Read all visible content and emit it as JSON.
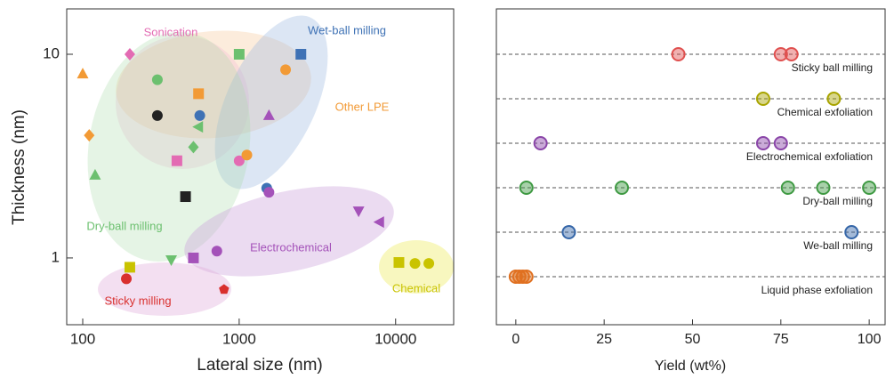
{
  "chart_data": [
    {
      "type": "scatter",
      "x_label": "Lateral size (nm)",
      "y_label": "Thickness (nm)",
      "xscale": "log",
      "yscale": "log",
      "xlim": [
        79,
        23500
      ],
      "ylim": [
        0.47,
        16.7
      ],
      "xticks": [
        100,
        1000,
        10000
      ],
      "yticks": [
        1,
        10
      ],
      "series": [
        {
          "name": "Sonication",
          "color": "#e36bb3",
          "x": [
            200,
            400,
            1000
          ],
          "y": [
            10,
            3,
            3
          ],
          "markers": [
            "diamond",
            "square",
            "circle"
          ]
        },
        {
          "name": "Wet-ball milling",
          "color": "#3f72b5",
          "x": [
            2480,
            560,
            1500
          ],
          "y": [
            10,
            5,
            2.2
          ],
          "markers": [
            "square",
            "circle",
            "circle"
          ]
        },
        {
          "name": "Other LPE",
          "color": "#f29a35",
          "x": [
            100,
            110,
            1980,
            1120,
            550
          ],
          "y": [
            8,
            4,
            8.4,
            3.2,
            6.4
          ],
          "markers": [
            "triangle",
            "diamond",
            "circle",
            "circle",
            "square"
          ]
        },
        {
          "name": "Dry-ball milling",
          "color": "#6cc06f",
          "x": [
            300,
            1000,
            550,
            510,
            120,
            368
          ],
          "y": [
            7.5,
            10,
            4.4,
            3.5,
            2.55,
            0.98
          ],
          "markers": [
            "circle",
            "square",
            "triangle-left",
            "diamond",
            "triangle",
            "triangle-down"
          ]
        },
        {
          "color": "#222222",
          "x": [
            300,
            454
          ],
          "y": [
            5,
            2
          ],
          "markers": [
            "circle",
            "square"
          ]
        },
        {
          "name": "Electrochemical",
          "color": "#a452b9",
          "x": [
            1550,
            1550,
            5800,
            7900,
            720,
            510
          ],
          "y": [
            5,
            2.1,
            1.7,
            1.5,
            1.08,
            1
          ],
          "markers": [
            "triangle",
            "circle",
            "triangle-down",
            "triangle-left",
            "circle",
            "square"
          ]
        },
        {
          "name": "Chemical",
          "color": "#c9c300",
          "x": [
            10500,
            13300,
            16300,
            200
          ],
          "y": [
            0.95,
            0.94,
            0.94,
            0.9
          ],
          "markers": [
            "square",
            "circle",
            "circle",
            "square"
          ]
        },
        {
          "name": "Sticky milling",
          "color": "#d9302e",
          "x": [
            190,
            800
          ],
          "y": [
            0.79,
            0.7
          ],
          "markers": [
            "circle",
            "pentagon"
          ]
        }
      ]
    },
    {
      "type": "dot",
      "x_label": "Yield (wt%)",
      "xlim": [
        -5.5,
        104.5
      ],
      "xticks": [
        0,
        25,
        50,
        75,
        100
      ],
      "series": [
        {
          "name": "Sticky ball milling",
          "color": "#e0504f",
          "values": [
            46,
            75,
            78
          ]
        },
        {
          "name": "Chemical exfoliation",
          "color": "#a8a400",
          "values": [
            70,
            90
          ]
        },
        {
          "name": "Electrochemical exfoliation",
          "color": "#8a45a8",
          "values": [
            7,
            70,
            75
          ]
        },
        {
          "name": "Dry-ball milling",
          "color": "#3f9a43",
          "values": [
            3,
            30,
            77,
            87,
            100
          ]
        },
        {
          "name": "We-ball milling",
          "color": "#3566a8",
          "values": [
            15,
            95
          ]
        },
        {
          "name": "Liquid phase exfoliation",
          "color": "#e07020",
          "values": [
            0,
            1,
            2,
            3
          ]
        }
      ]
    }
  ]
}
